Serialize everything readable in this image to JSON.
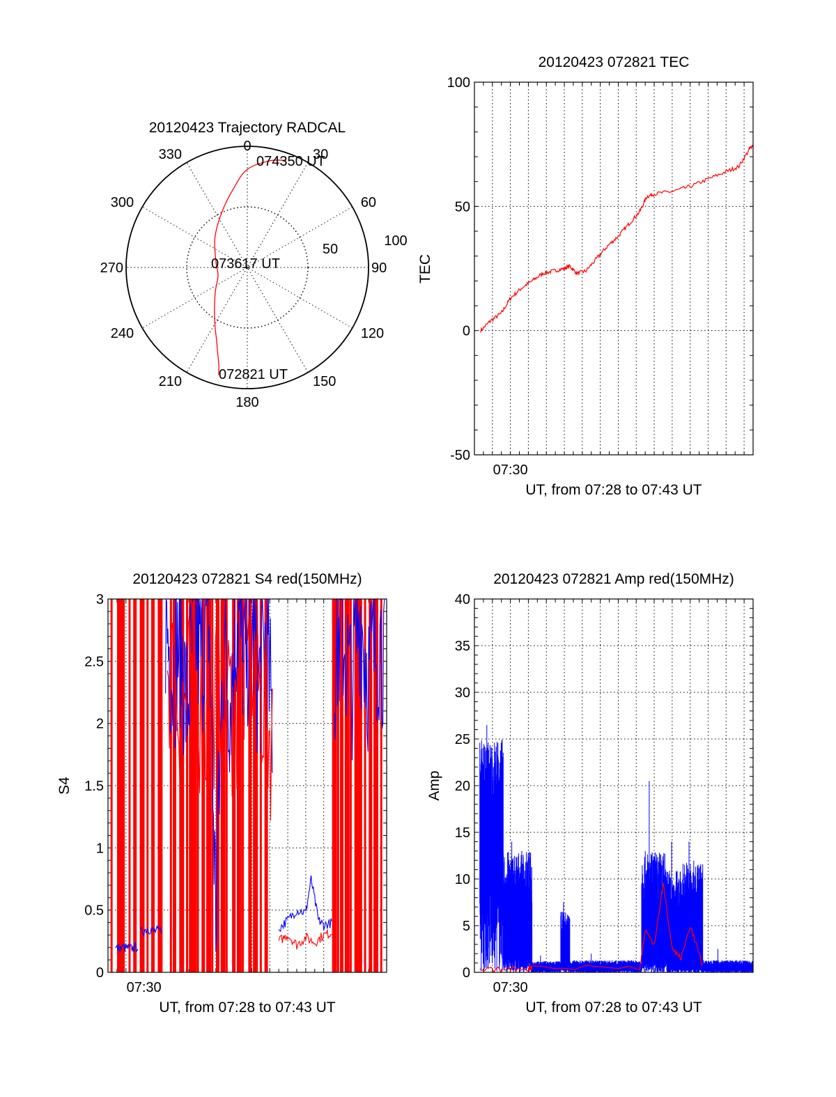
{
  "colors": {
    "red": "#ff0000",
    "blue": "#0000ff",
    "axis": "#000000"
  },
  "chart_data": [
    {
      "id": "trajectory",
      "type": "polar",
      "title": "20120423 Trajectory RADCAL",
      "angle_labels": [
        "0",
        "30",
        "60",
        "90",
        "120",
        "150",
        "180",
        "210",
        "240",
        "270",
        "300",
        "330"
      ],
      "radius_labels": [
        "50",
        "100"
      ],
      "rlim": [
        0,
        100
      ],
      "grid": true,
      "series": [
        {
          "color": "#ff0000",
          "azimuth": [
            195,
            196,
            199,
            203,
            209,
            218,
            233,
            255,
            278,
            312,
            335,
            350,
            360,
            12,
            20
          ],
          "radius": [
            92,
            85,
            75,
            65,
            55,
            44,
            33,
            25,
            26,
            36,
            50,
            66,
            81,
            90,
            94
          ]
        }
      ],
      "annotations": [
        {
          "text": "074350 UT",
          "azimuth": 18,
          "radius": 92
        },
        {
          "text": "073617 UT",
          "azimuth": 300,
          "radius": 4
        },
        {
          "text": "072821 UT",
          "azimuth": 185,
          "radius": 88
        }
      ]
    },
    {
      "id": "tec",
      "type": "line",
      "title": "20120423 072821 TEC",
      "xlabel": "UT, from 07:28 to 07:43 UT",
      "ylabel": "TEC",
      "xlim": [
        0,
        15.5
      ],
      "ylim": [
        -50,
        100
      ],
      "x_ticks": [
        {
          "x": 2,
          "label": "07:30"
        }
      ],
      "y_ticks": [
        {
          "y": -50,
          "label": "-50"
        },
        {
          "y": 0,
          "label": "0"
        },
        {
          "y": 50,
          "label": "50"
        },
        {
          "y": 100,
          "label": "100"
        }
      ],
      "grid": true,
      "series": [
        {
          "color": "#ff0000",
          "x": [
            0.35,
            0.9,
            1.5,
            2.0,
            2.6,
            3.2,
            3.8,
            4.4,
            5.0,
            5.3,
            5.7,
            6.2,
            6.8,
            7.4,
            8.0,
            8.6,
            9.2,
            9.6,
            10.0,
            11.0,
            12.0,
            13.0,
            14.0,
            14.7,
            15.3,
            15.5
          ],
          "y": [
            0,
            4,
            7,
            13,
            17,
            20,
            23,
            24,
            25,
            26,
            23,
            24,
            29,
            34,
            38,
            43,
            48,
            54,
            55,
            56,
            58,
            61,
            64,
            66,
            73,
            75
          ]
        }
      ]
    },
    {
      "id": "s4",
      "type": "line",
      "title": "20120423 072821 S4 red(150MHz)",
      "xlabel": "UT, from 07:28 to 07:43 UT",
      "ylabel": "S4",
      "xlim": [
        0,
        15.5
      ],
      "ylim": [
        0,
        3
      ],
      "x_ticks": [
        {
          "x": 2,
          "label": "07:30"
        }
      ],
      "y_ticks": [
        {
          "y": 0,
          "label": "0"
        },
        {
          "y": 0.5,
          "label": "0.5"
        },
        {
          "y": 1,
          "label": "1"
        },
        {
          "y": 1.5,
          "label": "1.5"
        },
        {
          "y": 2,
          "label": "2"
        },
        {
          "y": 2.5,
          "label": "2.5"
        },
        {
          "y": 3,
          "label": "3"
        }
      ],
      "grid": true,
      "red_spikes_x": [
        0.2,
        0.6,
        0.8,
        1.2,
        1.5,
        1.9,
        2.2,
        2.5,
        2.9,
        3.5,
        3.7,
        4.1,
        4.4,
        4.6,
        4.8,
        5.0,
        5.3,
        5.6,
        5.8,
        6.1,
        6.4,
        6.6,
        7.0,
        7.3,
        7.5,
        7.9,
        8.2,
        8.5,
        8.8,
        12.6,
        12.8,
        13.0,
        13.3,
        13.5,
        13.8,
        14.0,
        14.3,
        14.6,
        14.9,
        15.2
      ],
      "series": [
        {
          "color": "#0000ff",
          "x": [
            0.4,
            0.9,
            1.3,
            1.7
          ],
          "y": [
            0.19,
            0.2,
            0.19,
            0.21
          ]
        },
        {
          "color": "#0000ff",
          "x": [
            1.8,
            2.2,
            2.6,
            3.0
          ],
          "y": [
            0.32,
            0.35,
            0.33,
            0.34
          ]
        },
        {
          "color": "#0000ff",
          "x": [
            3.2,
            3.6,
            4.0,
            4.4,
            4.8,
            5.2,
            5.6,
            6.0,
            6.4,
            6.8,
            7.2,
            7.6,
            8.0,
            8.4,
            8.8,
            9.2
          ],
          "y": [
            2.85,
            2.4,
            2.7,
            2.1,
            2.8,
            2.5,
            2.9,
            0.45,
            2.6,
            2.2,
            2.9,
            2.5,
            2.8,
            2.3,
            2.7,
            1.9
          ]
        },
        {
          "color": "#ff0000",
          "x": [
            3.3,
            4.0,
            4.7,
            5.5,
            6.3,
            7.1,
            7.9,
            8.6,
            9.2
          ],
          "y": [
            2.5,
            2.1,
            2.3,
            1.9,
            2.4,
            2.0,
            2.6,
            2.2,
            1.8
          ]
        },
        {
          "color": "#0000ff",
          "x": [
            9.5,
            10.0,
            10.5,
            11.0,
            11.3,
            11.7,
            12.0,
            12.5
          ],
          "y": [
            0.35,
            0.42,
            0.5,
            0.48,
            0.75,
            0.42,
            0.38,
            0.4
          ]
        },
        {
          "color": "#ff0000",
          "x": [
            9.5,
            10.0,
            10.5,
            11.0,
            11.5,
            12.0,
            12.5
          ],
          "y": [
            0.25,
            0.3,
            0.22,
            0.28,
            0.24,
            0.3,
            0.32
          ]
        },
        {
          "color": "#0000ff",
          "x": [
            12.6,
            13.0,
            13.5,
            14.0,
            14.5,
            15.0,
            15.5
          ],
          "y": [
            2.5,
            2.8,
            2.3,
            2.9,
            2.4,
            2.7,
            2.6
          ]
        }
      ]
    },
    {
      "id": "amp",
      "type": "line",
      "title": "20120423 072821 Amp red(150MHz)",
      "xlabel": "UT, from 07:28 to 07:43 UT",
      "ylabel": "Amp",
      "xlim": [
        0,
        15.5
      ],
      "ylim": [
        0,
        40
      ],
      "x_ticks": [
        {
          "x": 2,
          "label": "07:30"
        }
      ],
      "y_ticks": [
        {
          "y": 0,
          "label": "0"
        },
        {
          "y": 5,
          "label": "5"
        },
        {
          "y": 10,
          "label": "10"
        },
        {
          "y": 15,
          "label": "15"
        },
        {
          "y": 20,
          "label": "20"
        },
        {
          "y": 25,
          "label": "25"
        },
        {
          "y": 30,
          "label": "30"
        },
        {
          "y": 35,
          "label": "35"
        },
        {
          "y": 40,
          "label": "40"
        }
      ],
      "grid": true,
      "series": [
        {
          "color": "#0000ff",
          "segments": [
            {
              "x0": 0.3,
              "x1": 1.6,
              "lo": 10,
              "hi": 25,
              "peak": 26.5
            },
            {
              "x0": 1.6,
              "x1": 3.2,
              "lo": 1.5,
              "hi": 13,
              "peak": 14
            },
            {
              "x0": 3.2,
              "x1": 4.8,
              "lo": 0.2,
              "hi": 1.2,
              "peak": 1.8
            },
            {
              "x0": 4.8,
              "x1": 5.3,
              "lo": 0.5,
              "hi": 6.5,
              "peak": 7.5
            },
            {
              "x0": 5.3,
              "x1": 9.3,
              "lo": 0.2,
              "hi": 1.3,
              "peak": 2
            },
            {
              "x0": 9.3,
              "x1": 10.7,
              "lo": 1.5,
              "hi": 13,
              "peak": 20.5
            },
            {
              "x0": 10.7,
              "x1": 11.6,
              "lo": 0.3,
              "hi": 11,
              "peak": 14
            },
            {
              "x0": 11.6,
              "x1": 12.7,
              "lo": 0.5,
              "hi": 12,
              "peak": 14
            },
            {
              "x0": 12.7,
              "x1": 15.5,
              "lo": 0.2,
              "hi": 1.3,
              "peak": 2.5
            }
          ]
        },
        {
          "color": "#ff0000",
          "x": [
            0.3,
            1.6,
            3.0,
            3.2,
            9.2,
            9.5,
            10.0,
            10.5,
            11.0,
            11.5,
            12.0,
            12.5,
            12.7
          ],
          "y": [
            0.2,
            0.3,
            0.4,
            0.6,
            0.5,
            4.5,
            3.0,
            9.5,
            2.5,
            1.5,
            5.0,
            2.0,
            0.5
          ]
        }
      ]
    }
  ]
}
